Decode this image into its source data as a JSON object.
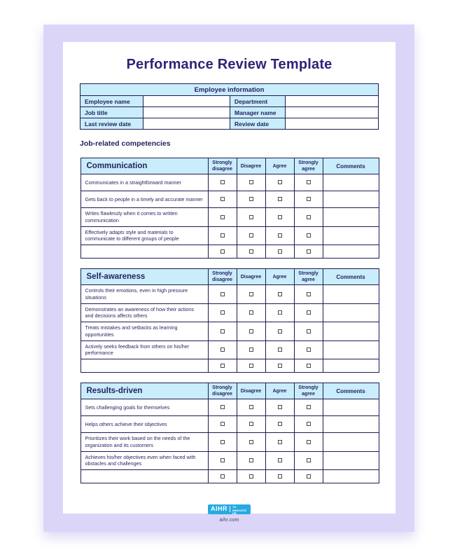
{
  "title": "Performance Review Template",
  "employee_info": {
    "header": "Employee information",
    "rows": [
      {
        "left_label": "Employee name",
        "left_value": "",
        "right_label": "Department",
        "right_value": ""
      },
      {
        "left_label": "Job title",
        "left_value": "",
        "right_label": "Manager name",
        "right_value": ""
      },
      {
        "left_label": "Last review date",
        "left_value": "",
        "right_label": "Review date",
        "right_value": ""
      }
    ]
  },
  "section_heading": "Job-related competencies",
  "rating_columns": [
    "Strongly disagree",
    "Disagree",
    "Agree",
    "Strongly agree"
  ],
  "comments_header": "Comments",
  "checkbox_state": "unchecked",
  "tables": [
    {
      "category": "Communication",
      "rows": [
        "Communicates in a straightforward manner",
        "Gets back to people in a timely and accurate manner",
        "Writes flawlessly when it comes to written communication",
        "Effectively adapts style and materials to communicate to different groups of people",
        ""
      ]
    },
    {
      "category": "Self-awareness",
      "rows": [
        "Controls their emotions, even in high pressure situations",
        "Demonstrates an awareness of how their actions and decisions affects others",
        "Treats mistakes and setbacks as learning opportunities",
        "Actively seeks feedback from others on his/her performance",
        ""
      ]
    },
    {
      "category": "Results-driven",
      "rows": [
        "Sets challenging goals for themselves",
        "Helps others achieve their objectives",
        "Prioritizes their work based on the needs of the organization and its customers",
        "Achieves his/her objectives even when faced with obstacles and challenges",
        ""
      ]
    }
  ],
  "footer": {
    "logo_text": "AIHR",
    "logo_tagline": "ACADEMY TO INNOVATE HR",
    "website": "aihr.com"
  },
  "colors": {
    "frame_lavender": "#dbd6f8",
    "cell_light_blue": "#c9edfb",
    "text_navy": "#26225f",
    "title_indigo": "#2e2377",
    "table_border": "#1e1b52",
    "logo_blue": "#27aae1"
  }
}
